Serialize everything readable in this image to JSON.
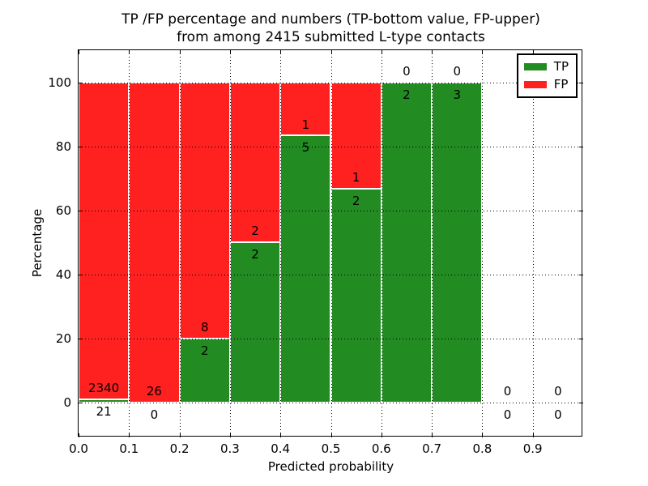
{
  "chart_data": {
    "type": "bar",
    "stacked": true,
    "title_line1": "TP /FP percentage and numbers (TP-bottom value, FP-upper)",
    "title_line2": "from among 2415 submitted L-type contacts",
    "xlabel": "Predicted probability",
    "ylabel": "Percentage",
    "total_contacts": 2415,
    "xlim": [
      0.0,
      1.0
    ],
    "ylim": [
      -11,
      110
    ],
    "grid": true,
    "xticks": [
      "0.0",
      "0.1",
      "0.2",
      "0.3",
      "0.4",
      "0.5",
      "0.6",
      "0.7",
      "0.8",
      "0.9"
    ],
    "yticks": [
      0,
      20,
      40,
      60,
      80,
      100
    ],
    "colors": {
      "tp": "#228b22",
      "fp": "#ff2020",
      "bar_edge": "#ffffff",
      "text": "#000000",
      "background": "#ffffff"
    },
    "legend": {
      "position": "upper right",
      "entries": [
        {
          "label": "TP",
          "color": "#228b22"
        },
        {
          "label": "FP",
          "color": "#ff2020"
        }
      ]
    },
    "categories": [
      "0.0-0.1",
      "0.1-0.2",
      "0.2-0.3",
      "0.3-0.4",
      "0.4-0.5",
      "0.5-0.6",
      "0.6-0.7",
      "0.7-0.8",
      "0.8-0.9",
      "0.9-1.0"
    ],
    "series": [
      {
        "name": "TP",
        "values": [
          0.89,
          0,
          20,
          50,
          83.33,
          66.67,
          100,
          100,
          0,
          0
        ]
      },
      {
        "name": "FP",
        "values": [
          99.11,
          100,
          80,
          50,
          16.67,
          33.33,
          0,
          0,
          0,
          0
        ]
      }
    ],
    "bins": [
      {
        "x0": 0.0,
        "x1": 0.1,
        "tp_count": 21,
        "fp_count": 2340,
        "tp_pct": 0.89,
        "fp_pct": 99.11
      },
      {
        "x0": 0.1,
        "x1": 0.2,
        "tp_count": 0,
        "fp_count": 26,
        "tp_pct": 0,
        "fp_pct": 100
      },
      {
        "x0": 0.2,
        "x1": 0.3,
        "tp_count": 2,
        "fp_count": 8,
        "tp_pct": 20,
        "fp_pct": 80
      },
      {
        "x0": 0.3,
        "x1": 0.4,
        "tp_count": 2,
        "fp_count": 2,
        "tp_pct": 50,
        "fp_pct": 50
      },
      {
        "x0": 0.4,
        "x1": 0.5,
        "tp_count": 5,
        "fp_count": 1,
        "tp_pct": 83.33,
        "fp_pct": 16.67
      },
      {
        "x0": 0.5,
        "x1": 0.6,
        "tp_count": 2,
        "fp_count": 1,
        "tp_pct": 66.67,
        "fp_pct": 33.33
      },
      {
        "x0": 0.6,
        "x1": 0.7,
        "tp_count": 2,
        "fp_count": 0,
        "tp_pct": 100,
        "fp_pct": 0
      },
      {
        "x0": 0.7,
        "x1": 0.8,
        "tp_count": 3,
        "fp_count": 0,
        "tp_pct": 100,
        "fp_pct": 0
      },
      {
        "x0": 0.8,
        "x1": 0.9,
        "tp_count": 0,
        "fp_count": 0,
        "tp_pct": 0,
        "fp_pct": 0
      },
      {
        "x0": 0.9,
        "x1": 1.0,
        "tp_count": 0,
        "fp_count": 0,
        "tp_pct": 0,
        "fp_pct": 0
      }
    ],
    "annotation_offsets": {
      "fp_label_above_tp_top": 3.5,
      "tp_label_below_tp_top": 3.8
    }
  }
}
